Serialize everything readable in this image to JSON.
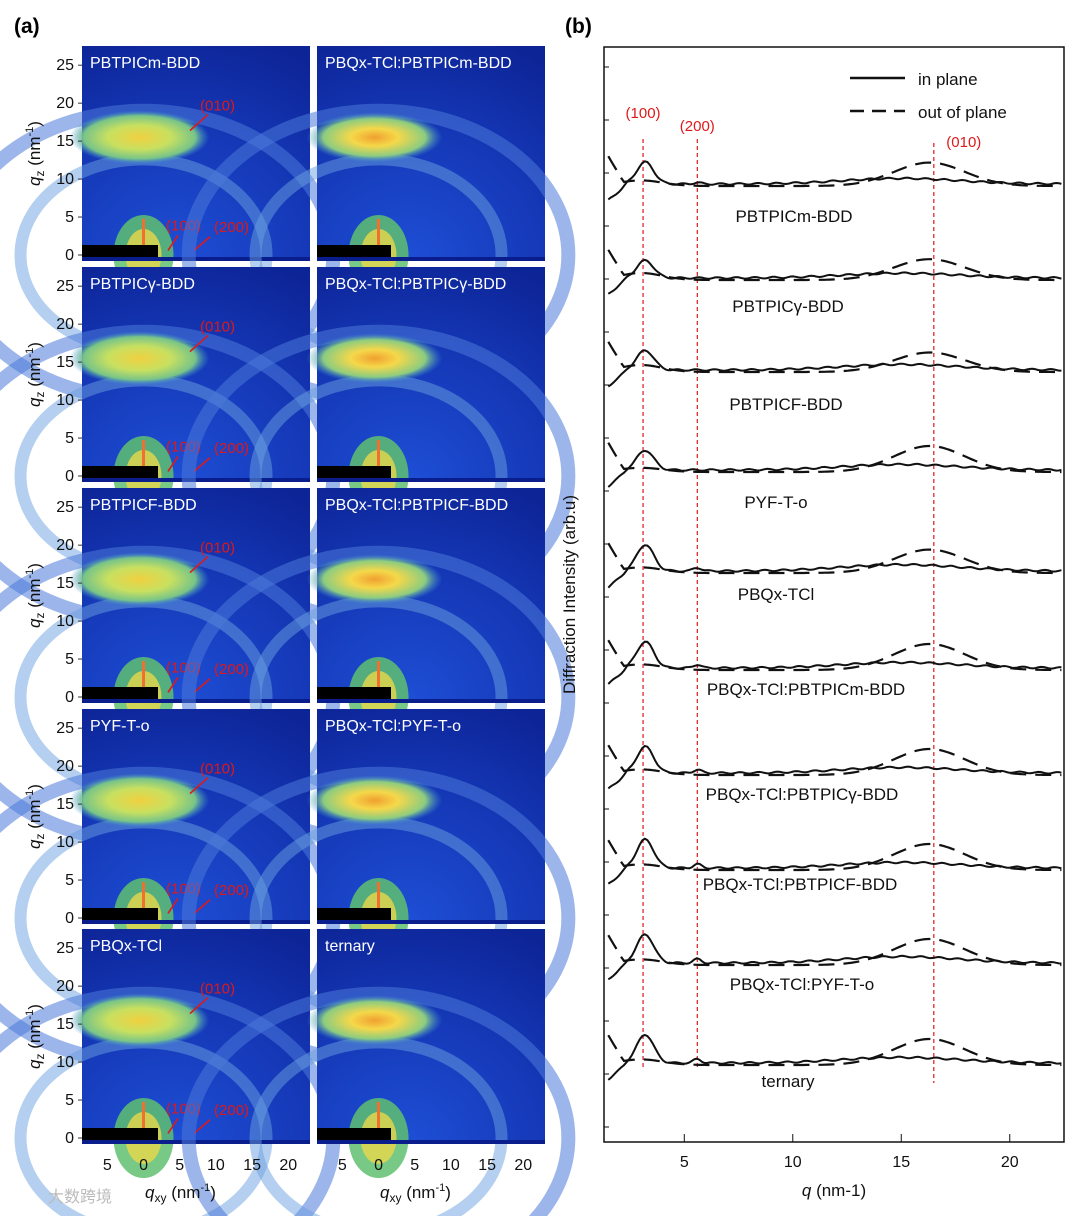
{
  "panel_a": {
    "letter": "(a)",
    "y_label": "q",
    "y_sub": "z",
    "y_unit": " (nm",
    "y_unit_sup": "-1",
    "y_unit_end": ")",
    "x_label": "q",
    "x_sub": "xy",
    "x_unit": " (nm",
    "x_unit_sup": "-1",
    "x_unit_end": ")",
    "y_ticks": [
      "0",
      "5",
      "10",
      "15",
      "20",
      "25"
    ],
    "x_ticks": [
      "5",
      "0",
      "5",
      "10",
      "15",
      "20"
    ],
    "peaks": [
      "(010)",
      "(100)",
      "(200)"
    ],
    "rows": [
      {
        "left": "PBTPICm-BDD",
        "right": "PBQx-TCl:PBTPICm-BDD"
      },
      {
        "left": "PBTPICγ-BDD",
        "right": "PBQx-TCl:PBTPICγ-BDD"
      },
      {
        "left": "PBTPICF-BDD",
        "right": "PBQx-TCl:PBTPICF-BDD"
      },
      {
        "left": "PYF-T-o",
        "right": "PBQx-TCl:PYF-T-o"
      },
      {
        "left": "PBQx-TCl",
        "right": "ternary"
      }
    ]
  },
  "chart_data": {
    "type": "line",
    "title": "(b)",
    "xlabel": "q (nm-1)",
    "ylabel": "Diffraction Intensity (arb.u)",
    "xlim": [
      1.3,
      22.5
    ],
    "x_ticks": [
      5,
      10,
      15,
      20
    ],
    "reference_lines": [
      {
        "label": "(100)",
        "q": 3.1
      },
      {
        "label": "(200)",
        "q": 5.6
      },
      {
        "label": "(010)",
        "q": 16.5
      }
    ],
    "legend": [
      {
        "name": "in plane",
        "style": "solid"
      },
      {
        "name": "out of plane",
        "style": "dashed"
      }
    ],
    "samples": [
      "PBTPICm-BDD",
      "PBTPICγ-BDD",
      "PBTPICF-BDD",
      "PYF-T-o",
      "PBQx-TCl",
      "PBQx-TCl:PBTPICm-BDD",
      "PBQx-TCl:PBTPICγ-BDD",
      "PBQx-TCl:PBTPICF-BDD",
      "PBQx-TCl:PYF-T-o",
      "ternary"
    ],
    "series_shape": [
      {
        "in_plane": {
          "p100": 1.0,
          "p200": 0.15,
          "p010": 0.35
        },
        "out_of_plane": {
          "p100": 0.4,
          "p010": 0.9
        }
      },
      {
        "in_plane": {
          "p100": 0.8,
          "p200": 0.0,
          "p010": 0.3
        },
        "out_of_plane": {
          "p100": 0.5,
          "p010": 0.8
        }
      },
      {
        "in_plane": {
          "p100": 0.9,
          "p200": 0.0,
          "p010": 0.35
        },
        "out_of_plane": {
          "p100": 0.5,
          "p010": 0.75
        }
      },
      {
        "in_plane": {
          "p100": 0.9,
          "p200": 0.0,
          "p010": 0.35
        },
        "out_of_plane": {
          "p100": 0.3,
          "p010": 1.0
        }
      },
      {
        "in_plane": {
          "p100": 1.2,
          "p200": 0.35,
          "p010": 0.4
        },
        "out_of_plane": {
          "p100": 0.4,
          "p010": 0.9
        }
      },
      {
        "in_plane": {
          "p100": 1.2,
          "p200": 0.35,
          "p010": 0.35
        },
        "out_of_plane": {
          "p100": 0.4,
          "p010": 1.0
        }
      },
      {
        "in_plane": {
          "p100": 1.2,
          "p200": 0.35,
          "p010": 0.35
        },
        "out_of_plane": {
          "p100": 0.4,
          "p010": 1.0
        }
      },
      {
        "in_plane": {
          "p100": 1.3,
          "p200": 0.4,
          "p010": 0.35
        },
        "out_of_plane": {
          "p100": 0.4,
          "p010": 1.0
        }
      },
      {
        "in_plane": {
          "p100": 1.3,
          "p200": 0.4,
          "p010": 0.4
        },
        "out_of_plane": {
          "p100": 0.4,
          "p010": 1.0
        }
      },
      {
        "in_plane": {
          "p100": 1.3,
          "p200": 0.4,
          "p010": 0.35
        },
        "out_of_plane": {
          "p100": 0.4,
          "p010": 1.0
        }
      }
    ]
  },
  "watermark": "大数跨境",
  "colors": {
    "bg_dark": "#0a1d8c",
    "bg_mid": "#1f44c8",
    "ring": "#6fbf7a",
    "hot": "#f2a93b",
    "redline": "#e01818"
  }
}
